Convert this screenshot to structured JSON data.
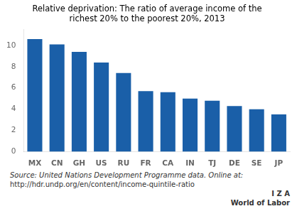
{
  "chart_data": {
    "type": "bar",
    "title": "Relative deprivation: The ratio of average income of the\nrichest 20% to the poorest 20%, 2013",
    "categories": [
      "MX",
      "CN",
      "GH",
      "US",
      "RU",
      "FR",
      "CA",
      "IN",
      "TJ",
      "DE",
      "SE",
      "JP"
    ],
    "values": [
      10.6,
      10.1,
      9.4,
      8.4,
      7.4,
      5.7,
      5.6,
      5.0,
      4.8,
      4.3,
      4.0,
      3.5
    ],
    "color": "#1a5fa8",
    "ylim": [
      0,
      11.5
    ],
    "yticks": [
      0,
      2,
      4,
      6,
      8,
      10
    ],
    "grid": false,
    "annotations": [
      "Source: United Nations Development Programme data. Online at:",
      "http://hdr.undp.org/en/content/income-quintile-ratio",
      "I  Z  A",
      "World of Labor"
    ]
  }
}
